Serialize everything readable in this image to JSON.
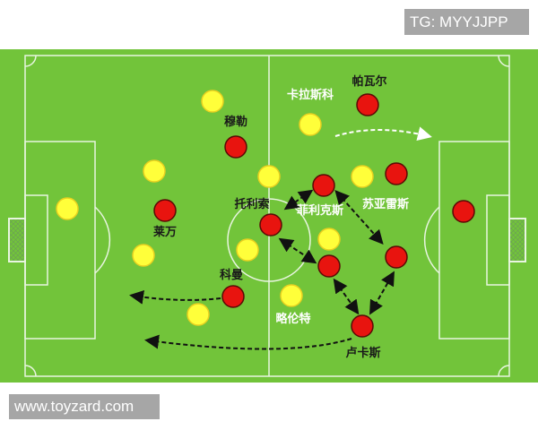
{
  "watermark_top": "TG: MYYJJPP",
  "watermark_bottom": "www.toyzard.com",
  "colors": {
    "pitch": "#72c43a",
    "team_red": "#e8140f",
    "team_yellow": "#ffff3a",
    "label_dark": "#1a1a1a",
    "label_light": "#ffffff"
  },
  "players": {
    "red": [
      {
        "name": "帕瓦尔",
        "label_color": "dark"
      },
      {
        "name": "穆勒",
        "label_color": "dark"
      },
      {
        "name": "",
        "label_color": ""
      },
      {
        "name": "",
        "label_color": ""
      },
      {
        "name": "莱万",
        "label_color": "dark"
      },
      {
        "name": "托利索",
        "label_color": "dark"
      },
      {
        "name": "",
        "label_color": ""
      },
      {
        "name": "",
        "label_color": ""
      },
      {
        "name": "",
        "label_color": ""
      },
      {
        "name": "科曼",
        "label_color": "dark"
      },
      {
        "name": "卢卡斯",
        "label_color": "dark"
      }
    ],
    "yellow_labels": [
      {
        "name": "卡拉斯科",
        "label_color": "light"
      },
      {
        "name": "苏亚雷斯",
        "label_color": "light"
      },
      {
        "name": "菲利克斯",
        "label_color": "light"
      },
      {
        "name": "略伦特",
        "label_color": "light"
      }
    ]
  }
}
